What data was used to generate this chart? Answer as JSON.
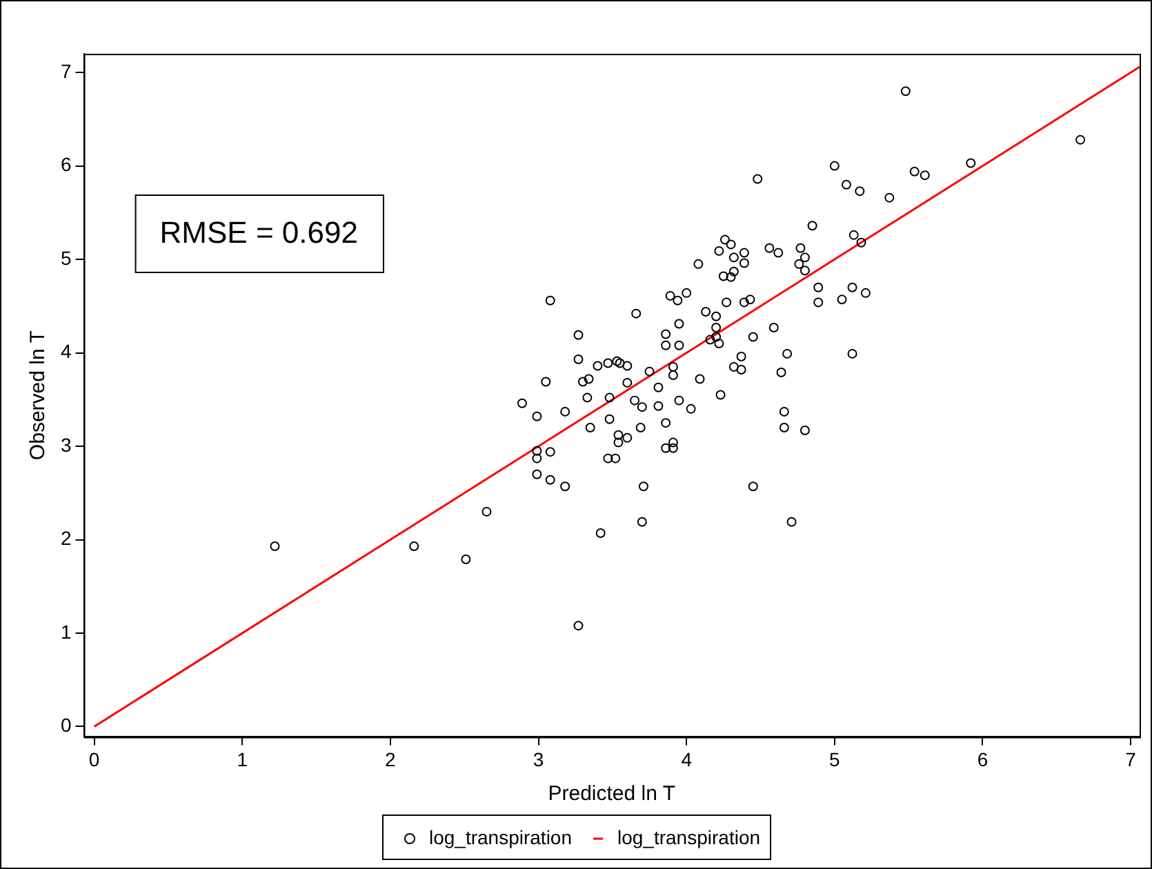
{
  "chart_data": {
    "type": "scatter",
    "xlabel": "Predicted ln T",
    "ylabel": "Observed ln T",
    "annotations": [
      "RMSE = 0.692"
    ],
    "xlim": [
      -0.07,
      7.06
    ],
    "ylim": [
      -0.11,
      7.2
    ],
    "xticks": [
      0,
      1,
      2,
      3,
      4,
      5,
      6,
      7
    ],
    "yticks": [
      0,
      1,
      2,
      3,
      4,
      5,
      6,
      7
    ],
    "grid": false,
    "legend": "bottom",
    "series": [
      {
        "name": "log_transpiration",
        "type": "scatter",
        "color": "#000000",
        "marker": "circle",
        "x": [
          1.22,
          2.16,
          2.51,
          2.65,
          2.89,
          2.99,
          2.99,
          2.99,
          2.99,
          3.05,
          3.08,
          3.08,
          3.08,
          3.18,
          3.18,
          3.27,
          3.27,
          3.27,
          3.3,
          3.34,
          3.33,
          3.35,
          3.4,
          3.42,
          3.47,
          3.48,
          3.48,
          3.47,
          3.52,
          3.53,
          3.55,
          3.6,
          3.66,
          3.65,
          3.7,
          3.69,
          3.54,
          3.54,
          3.6,
          3.71,
          3.7,
          3.6,
          3.75,
          3.81,
          3.81,
          3.86,
          3.86,
          3.86,
          3.86,
          3.89,
          3.91,
          3.91,
          3.91,
          3.91,
          3.94,
          3.95,
          3.95,
          3.95,
          4.0,
          4.03,
          4.08,
          4.09,
          4.13,
          4.16,
          4.2,
          4.2,
          4.2,
          4.22,
          4.22,
          4.23,
          4.25,
          4.26,
          4.3,
          4.3,
          4.32,
          4.32,
          4.32,
          4.37,
          4.37,
          4.39,
          4.39,
          4.39,
          4.27,
          4.43,
          4.45,
          4.45,
          4.48,
          4.56,
          4.59,
          4.62,
          4.64,
          4.66,
          4.66,
          4.68,
          4.71,
          4.77,
          4.8,
          4.76,
          4.8,
          4.8,
          4.85,
          4.89,
          4.89,
          5.0,
          5.05,
          5.08,
          5.12,
          5.12,
          5.13,
          5.17,
          5.18,
          5.21,
          5.37,
          5.48,
          5.54,
          5.61,
          5.92,
          6.66
        ],
        "values": [
          1.93,
          1.93,
          1.79,
          2.3,
          3.46,
          3.32,
          2.95,
          2.87,
          2.7,
          3.69,
          4.56,
          2.94,
          2.64,
          3.37,
          2.57,
          4.19,
          3.93,
          1.08,
          3.69,
          3.72,
          3.52,
          3.2,
          3.86,
          2.07,
          3.89,
          3.52,
          3.29,
          2.87,
          2.87,
          3.91,
          3.89,
          3.86,
          4.42,
          3.49,
          3.42,
          3.2,
          3.12,
          3.04,
          3.09,
          2.57,
          2.19,
          3.68,
          3.8,
          3.63,
          3.43,
          4.2,
          4.08,
          3.25,
          2.98,
          4.61,
          3.85,
          3.76,
          3.04,
          2.98,
          4.56,
          4.31,
          4.08,
          3.49,
          4.64,
          3.4,
          4.95,
          3.72,
          4.44,
          4.14,
          4.39,
          4.27,
          4.17,
          4.1,
          5.09,
          3.55,
          4.82,
          5.21,
          5.16,
          4.81,
          5.02,
          4.87,
          3.85,
          3.96,
          3.82,
          5.07,
          4.96,
          4.54,
          4.54,
          4.57,
          4.17,
          2.57,
          5.86,
          5.12,
          4.27,
          5.07,
          3.79,
          3.37,
          3.2,
          3.99,
          2.19,
          5.12,
          5.02,
          4.95,
          4.88,
          3.17,
          5.36,
          4.7,
          4.54,
          6.0,
          4.57,
          5.8,
          4.7,
          3.99,
          5.26,
          5.73,
          5.18,
          4.64,
          5.66,
          6.8,
          5.94,
          5.9,
          6.03,
          6.28
        ]
      },
      {
        "name": "log_transpiration",
        "type": "line",
        "color": "#ff0000",
        "marker": "none",
        "line_style": "solid",
        "x": [
          0,
          7.06
        ],
        "values": [
          0,
          7.06
        ]
      }
    ]
  }
}
